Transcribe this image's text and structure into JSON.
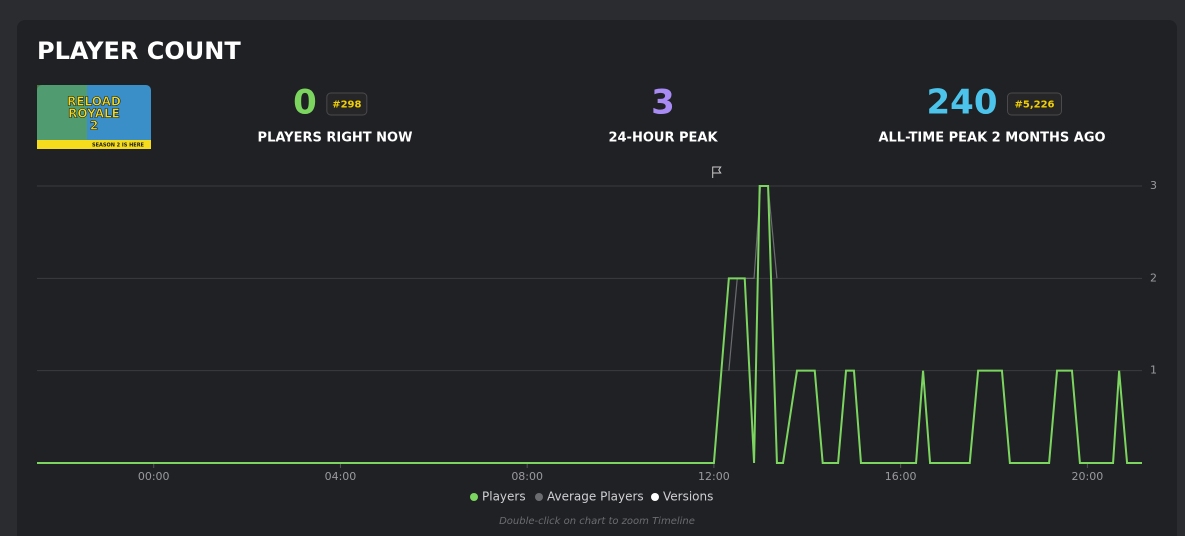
{
  "header": {
    "title": "PLAYER COUNT",
    "thumbnail": {
      "lines": [
        "RELOAD",
        "ROYALE",
        "2"
      ],
      "banner": "SEASON 2 IS HERE"
    },
    "stats": [
      {
        "value": "0",
        "rank": "#298",
        "label": "PLAYERS RIGHT NOW",
        "color": "#7bd55f"
      },
      {
        "value": "3",
        "label": "24-HOUR PEAK",
        "color": "#a98bf5"
      },
      {
        "value": "240",
        "rank": "#5,226",
        "label": "ALL-TIME PEAK 2 MONTHS AGO",
        "color": "#4cc3ea"
      }
    ]
  },
  "chart_data": {
    "type": "line",
    "xlim": [
      -2.5,
      21.17
    ],
    "ylim": [
      0,
      3
    ],
    "xticks": [
      {
        "value": 0,
        "label": "00:00"
      },
      {
        "value": 4,
        "label": "04:00"
      },
      {
        "value": 8,
        "label": "08:00"
      },
      {
        "value": 12,
        "label": "12:00"
      },
      {
        "value": 16,
        "label": "16:00"
      },
      {
        "value": 20,
        "label": "20:00"
      }
    ],
    "yticks": [
      1,
      2,
      3
    ],
    "grid": true,
    "series": [
      {
        "name": "Players",
        "color": "#7bd55f",
        "x": [
          -2.5,
          12.0,
          12.32,
          12.66,
          12.86,
          12.98,
          13.16,
          13.35,
          13.48,
          13.78,
          14.16,
          14.33,
          14.66,
          14.83,
          15.0,
          15.15,
          16.33,
          16.48,
          16.63,
          17.48,
          17.66,
          18.17,
          18.34,
          19.18,
          19.35,
          19.67,
          19.84,
          20.55,
          20.68,
          20.85,
          21.17
        ],
        "values": [
          0,
          0,
          2,
          2,
          0,
          3,
          3,
          0,
          0,
          1,
          1,
          0,
          0,
          1,
          1,
          0,
          0,
          1,
          0,
          0,
          1,
          1,
          0,
          0,
          1,
          1,
          0,
          0,
          1,
          0,
          0
        ]
      },
      {
        "name": "Average Players",
        "color": "#6b6c6f",
        "x": [
          12.32,
          12.5,
          12.86,
          13.0,
          13.16,
          13.35
        ],
        "values": [
          1,
          2,
          2,
          3,
          3,
          2
        ]
      },
      {
        "name": "Versions",
        "color": "#ffffff",
        "x": [
          12.06
        ]
      }
    ],
    "note": "Double-click on chart to zoom Timeline"
  }
}
